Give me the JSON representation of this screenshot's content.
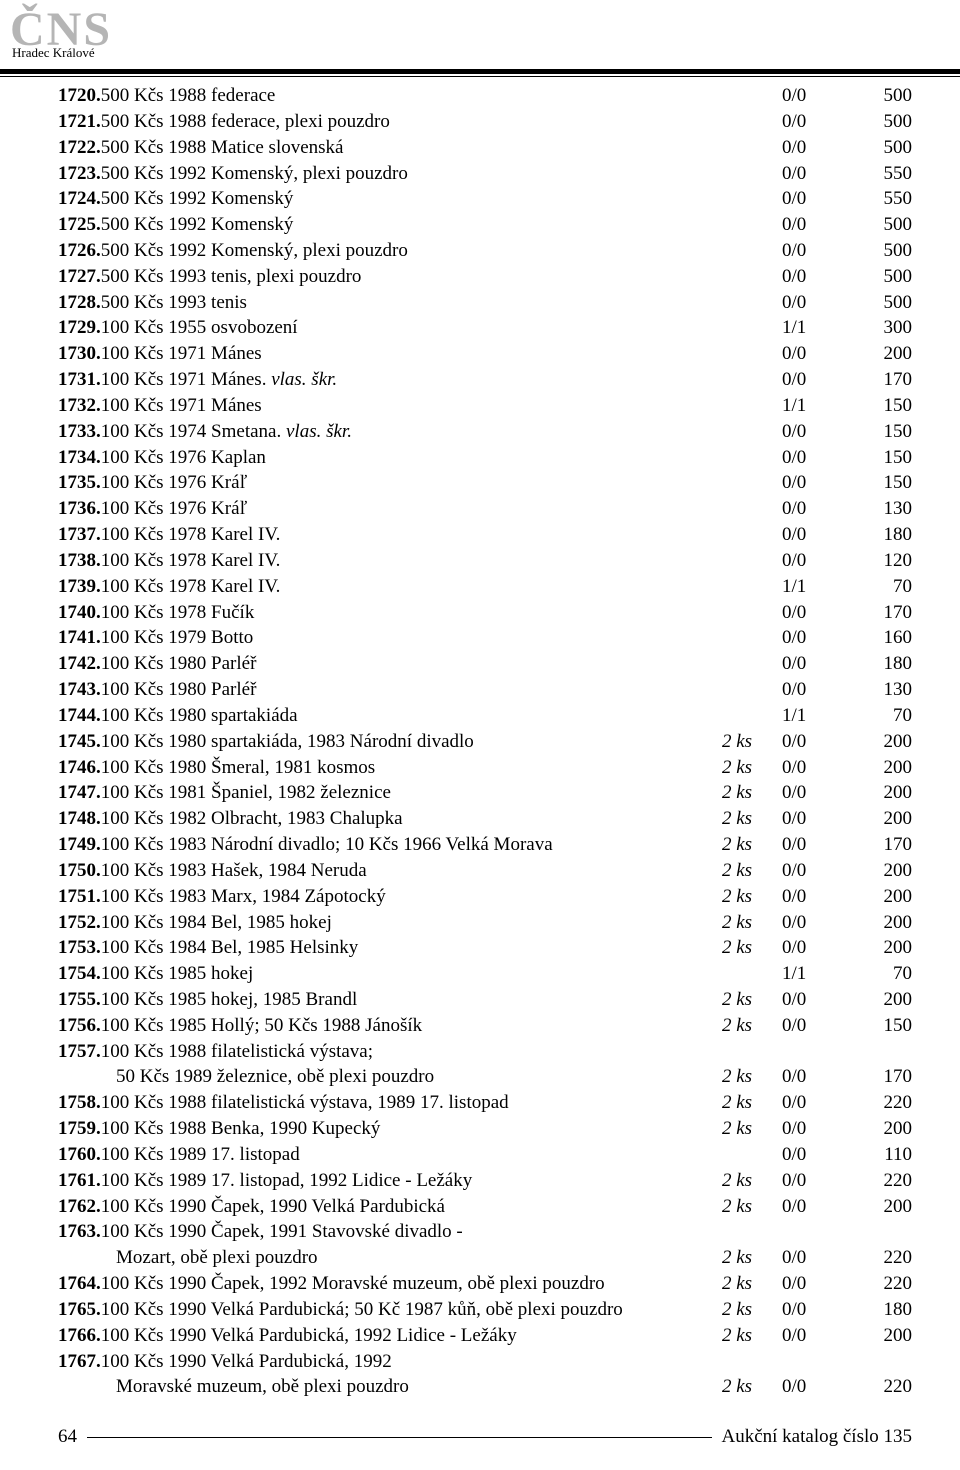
{
  "header": {
    "logo_text": "ČNS",
    "logo_sub": "Hradec Králové"
  },
  "footer": {
    "page": "64",
    "text": "Aukční katalog číslo 135"
  },
  "lots": [
    {
      "n": "1720.",
      "d": "500 Kčs 1988 federace",
      "q": "",
      "g": "0/0",
      "p": "500"
    },
    {
      "n": "1721.",
      "d": "500 Kčs 1988 federace, plexi pouzdro",
      "q": "",
      "g": "0/0",
      "p": "500"
    },
    {
      "n": "1722.",
      "d": "500 Kčs 1988 Matice slovenská",
      "q": "",
      "g": "0/0",
      "p": "500"
    },
    {
      "n": "1723.",
      "d": "500 Kčs 1992 Komenský, plexi pouzdro",
      "q": "",
      "g": "0/0",
      "p": "550"
    },
    {
      "n": "1724.",
      "d": "500 Kčs 1992 Komenský",
      "q": "",
      "g": "0/0",
      "p": "550"
    },
    {
      "n": "1725.",
      "d": "500 Kčs 1992 Komenský",
      "q": "",
      "g": "0/0",
      "p": "500"
    },
    {
      "n": "1726.",
      "d": "500 Kčs 1992 Komenský, plexi pouzdro",
      "q": "",
      "g": "0/0",
      "p": "500"
    },
    {
      "n": "1727.",
      "d": "500 Kčs 1993 tenis, plexi pouzdro",
      "q": "",
      "g": "0/0",
      "p": "500"
    },
    {
      "n": "1728.",
      "d": "500 Kčs 1993 tenis",
      "q": "",
      "g": "0/0",
      "p": "500"
    },
    {
      "n": "1729.",
      "d": "100 Kčs 1955 osvobození",
      "q": "",
      "g": "1/1",
      "p": "300"
    },
    {
      "n": "1730.",
      "d": "100 Kčs 1971 Mánes",
      "q": "",
      "g": "0/0",
      "p": "200"
    },
    {
      "n": "1731.",
      "d": "100 Kčs 1971 Mánes. <em>vlas. škr.</em>",
      "q": "",
      "g": "0/0",
      "p": "170"
    },
    {
      "n": "1732.",
      "d": "100 Kčs 1971 Mánes",
      "q": "",
      "g": "1/1",
      "p": "150"
    },
    {
      "n": "1733.",
      "d": "100 Kčs 1974 Smetana. <em>vlas. škr.</em>",
      "q": "",
      "g": "0/0",
      "p": "150"
    },
    {
      "n": "1734.",
      "d": "100 Kčs 1976 Kaplan",
      "q": "",
      "g": "0/0",
      "p": "150"
    },
    {
      "n": "1735.",
      "d": "100 Kčs 1976 Kráľ",
      "q": "",
      "g": "0/0",
      "p": "150"
    },
    {
      "n": "1736.",
      "d": "100 Kčs 1976 Kráľ",
      "q": "",
      "g": "0/0",
      "p": "130"
    },
    {
      "n": "1737.",
      "d": "100 Kčs 1978 Karel IV.",
      "q": "",
      "g": "0/0",
      "p": "180"
    },
    {
      "n": "1738.",
      "d": "100 Kčs 1978 Karel IV.",
      "q": "",
      "g": "0/0",
      "p": "120"
    },
    {
      "n": "1739.",
      "d": "100 Kčs 1978 Karel IV.",
      "q": "",
      "g": "1/1",
      "p": "70"
    },
    {
      "n": "1740.",
      "d": "100 Kčs 1978 Fučík",
      "q": "",
      "g": "0/0",
      "p": "170"
    },
    {
      "n": "1741.",
      "d": "100 Kčs 1979 Botto",
      "q": "",
      "g": "0/0",
      "p": "160"
    },
    {
      "n": "1742.",
      "d": "100 Kčs 1980 Parléř",
      "q": "",
      "g": "0/0",
      "p": "180"
    },
    {
      "n": "1743.",
      "d": "100 Kčs 1980 Parléř",
      "q": "",
      "g": "0/0",
      "p": "130"
    },
    {
      "n": "1744.",
      "d": "100 Kčs 1980 spartakiáda",
      "q": "",
      "g": "1/1",
      "p": "70"
    },
    {
      "n": "1745.",
      "d": "100 Kčs 1980 spartakiáda, 1983 Národní divadlo",
      "q": "2 ks",
      "g": "0/0",
      "p": "200"
    },
    {
      "n": "1746.",
      "d": "100 Kčs 1980 Šmeral, 1981 kosmos",
      "q": "2 ks",
      "g": "0/0",
      "p": "200"
    },
    {
      "n": "1747.",
      "d": "100 Kčs 1981 Španiel, 1982 železnice",
      "q": "2 ks",
      "g": "0/0",
      "p": "200"
    },
    {
      "n": "1748.",
      "d": "100 Kčs 1982 Olbracht, 1983 Chalupka",
      "q": "2 ks",
      "g": "0/0",
      "p": "200"
    },
    {
      "n": "1749.",
      "d": "100 Kčs 1983 Národní divadlo; 10 Kčs 1966 Velká Morava",
      "q": "2 ks",
      "g": "0/0",
      "p": "170"
    },
    {
      "n": "1750.",
      "d": "100 Kčs 1983 Hašek, 1984 Neruda",
      "q": "2 ks",
      "g": "0/0",
      "p": "200"
    },
    {
      "n": "1751.",
      "d": "100 Kčs 1983 Marx, 1984 Zápotocký",
      "q": "2 ks",
      "g": "0/0",
      "p": "200"
    },
    {
      "n": "1752.",
      "d": "100 Kčs 1984 Bel, 1985 hokej",
      "q": "2 ks",
      "g": "0/0",
      "p": "200"
    },
    {
      "n": "1753.",
      "d": "100 Kčs 1984 Bel, 1985 Helsinky",
      "q": "2 ks",
      "g": "0/0",
      "p": "200"
    },
    {
      "n": "1754.",
      "d": "100 Kčs 1985 hokej",
      "q": "",
      "g": "1/1",
      "p": "70"
    },
    {
      "n": "1755.",
      "d": "100 Kčs 1985 hokej, 1985 Brandl",
      "q": "2 ks",
      "g": "0/0",
      "p": "200"
    },
    {
      "n": "1756.",
      "d": "100 Kčs 1985 Hollý; 50 Kčs 1988 Jánošík",
      "q": "2 ks",
      "g": "0/0",
      "p": "150"
    },
    {
      "n": "1757.",
      "d": "100 Kčs 1988 filatelistická výstava;",
      "cont": "50 Kčs 1989 železnice, obě plexi pouzdro",
      "q": "2 ks",
      "g": "0/0",
      "p": "170"
    },
    {
      "n": "1758.",
      "d": "100 Kčs 1988 filatelistická výstava, 1989 17. listopad",
      "q": "2 ks",
      "g": "0/0",
      "p": "220"
    },
    {
      "n": "1759.",
      "d": "100 Kčs 1988 Benka, 1990 Kupecký",
      "q": "2 ks",
      "g": "0/0",
      "p": "200"
    },
    {
      "n": "1760.",
      "d": "100 Kčs 1989 17. listopad",
      "q": "",
      "g": "0/0",
      "p": "110"
    },
    {
      "n": "1761.",
      "d": "100 Kčs 1989 17. listopad, 1992 Lidice - Ležáky",
      "q": "2 ks",
      "g": "0/0",
      "p": "220"
    },
    {
      "n": "1762.",
      "d": "100 Kčs 1990 Čapek, 1990 Velká Pardubická",
      "q": "2 ks",
      "g": "0/0",
      "p": "200"
    },
    {
      "n": "1763.",
      "d": "100 Kčs 1990 Čapek, 1991 Stavovské divadlo -",
      "cont": "Mozart, obě plexi pouzdro",
      "q": "2 ks",
      "g": "0/0",
      "p": "220"
    },
    {
      "n": "1764.",
      "d": "100 Kčs 1990 Čapek, 1992 Moravské muzeum, obě plexi pouzdro",
      "q": "2 ks",
      "g": "0/0",
      "p": "220"
    },
    {
      "n": "1765.",
      "d": "100 Kčs 1990 Velká Pardubická; 50 Kč 1987 kůň, obě plexi pouzdro",
      "q": "2 ks",
      "g": "0/0",
      "p": "180"
    },
    {
      "n": "1766.",
      "d": "100 Kčs 1990 Velká Pardubická, 1992 Lidice - Ležáky",
      "q": "2 ks",
      "g": "0/0",
      "p": "200"
    },
    {
      "n": "1767.",
      "d": "100 Kčs 1990 Velká Pardubická, 1992",
      "cont": "Moravské muzeum, obě plexi pouzdro",
      "q": "2 ks",
      "g": "0/0",
      "p": "220"
    }
  ]
}
